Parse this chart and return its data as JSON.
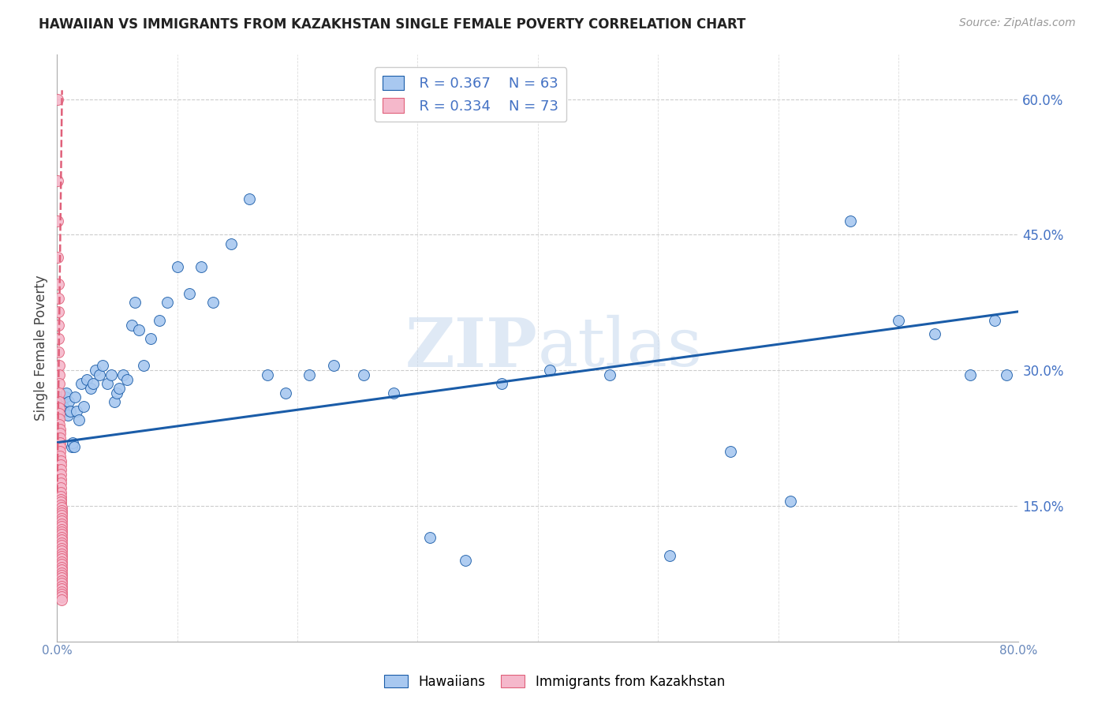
{
  "title": "HAWAIIAN VS IMMIGRANTS FROM KAZAKHSTAN SINGLE FEMALE POVERTY CORRELATION CHART",
  "source": "Source: ZipAtlas.com",
  "ylabel": "Single Female Poverty",
  "watermark": "ZIPatlas",
  "legend_r1": "R = 0.367",
  "legend_n1": "N = 63",
  "legend_r2": "R = 0.334",
  "legend_n2": "N = 73",
  "hawaiian_color": "#a8c8f0",
  "hawaii_line_color": "#1a5ca8",
  "kazakhstan_color": "#f5b8cb",
  "kazakhstan_line_color": "#e0607a",
  "hawaiian_x": [
    0.003,
    0.004,
    0.005,
    0.006,
    0.007,
    0.008,
    0.009,
    0.01,
    0.011,
    0.012,
    0.013,
    0.014,
    0.015,
    0.016,
    0.018,
    0.02,
    0.022,
    0.025,
    0.028,
    0.03,
    0.032,
    0.035,
    0.038,
    0.042,
    0.045,
    0.048,
    0.05,
    0.052,
    0.055,
    0.058,
    0.062,
    0.065,
    0.068,
    0.072,
    0.078,
    0.085,
    0.092,
    0.1,
    0.11,
    0.12,
    0.13,
    0.145,
    0.16,
    0.175,
    0.19,
    0.21,
    0.23,
    0.255,
    0.28,
    0.31,
    0.34,
    0.37,
    0.41,
    0.46,
    0.51,
    0.56,
    0.61,
    0.66,
    0.7,
    0.73,
    0.76,
    0.78,
    0.79
  ],
  "hawaiian_y": [
    0.27,
    0.265,
    0.26,
    0.255,
    0.27,
    0.275,
    0.25,
    0.265,
    0.255,
    0.215,
    0.22,
    0.215,
    0.27,
    0.255,
    0.245,
    0.285,
    0.26,
    0.29,
    0.28,
    0.285,
    0.3,
    0.295,
    0.305,
    0.285,
    0.295,
    0.265,
    0.275,
    0.28,
    0.295,
    0.29,
    0.35,
    0.375,
    0.345,
    0.305,
    0.335,
    0.355,
    0.375,
    0.415,
    0.385,
    0.415,
    0.375,
    0.44,
    0.49,
    0.295,
    0.275,
    0.295,
    0.305,
    0.295,
    0.275,
    0.115,
    0.09,
    0.285,
    0.3,
    0.295,
    0.095,
    0.21,
    0.155,
    0.465,
    0.355,
    0.34,
    0.295,
    0.355,
    0.295
  ],
  "kazakhstan_x": [
    0.0005,
    0.0006,
    0.0007,
    0.0008,
    0.0009,
    0.001,
    0.001,
    0.0012,
    0.0013,
    0.0014,
    0.0015,
    0.0016,
    0.0017,
    0.0018,
    0.0019,
    0.002,
    0.002,
    0.002,
    0.002,
    0.0022,
    0.0023,
    0.0024,
    0.0025,
    0.0026,
    0.0027,
    0.0028,
    0.003,
    0.003,
    0.003,
    0.003,
    0.003,
    0.003,
    0.003,
    0.003,
    0.003,
    0.0032,
    0.0033,
    0.0034,
    0.0035,
    0.0036,
    0.0037,
    0.0038,
    0.0039,
    0.004,
    0.004,
    0.004,
    0.004,
    0.004,
    0.004,
    0.004,
    0.004,
    0.004,
    0.004,
    0.004,
    0.004,
    0.004,
    0.004,
    0.004,
    0.004,
    0.004,
    0.004,
    0.004,
    0.004,
    0.004,
    0.004,
    0.004,
    0.004,
    0.004,
    0.004,
    0.004,
    0.004,
    0.004,
    0.004
  ],
  "kazakhstan_y": [
    0.6,
    0.51,
    0.465,
    0.425,
    0.395,
    0.38,
    0.365,
    0.35,
    0.335,
    0.32,
    0.305,
    0.295,
    0.285,
    0.275,
    0.265,
    0.258,
    0.252,
    0.246,
    0.24,
    0.235,
    0.23,
    0.225,
    0.22,
    0.215,
    0.21,
    0.205,
    0.2,
    0.195,
    0.19,
    0.185,
    0.18,
    0.175,
    0.17,
    0.165,
    0.16,
    0.157,
    0.154,
    0.151,
    0.148,
    0.145,
    0.142,
    0.139,
    0.136,
    0.133,
    0.13,
    0.127,
    0.124,
    0.121,
    0.118,
    0.115,
    0.112,
    0.109,
    0.106,
    0.103,
    0.1,
    0.097,
    0.094,
    0.091,
    0.088,
    0.085,
    0.082,
    0.079,
    0.076,
    0.073,
    0.07,
    0.067,
    0.064,
    0.061,
    0.058,
    0.055,
    0.052,
    0.049,
    0.046
  ],
  "xlim": [
    0.0,
    0.8
  ],
  "ylim": [
    0.0,
    0.65
  ],
  "blue_line_x": [
    0.0,
    0.8
  ],
  "blue_line_y": [
    0.22,
    0.365
  ],
  "pink_line_x": [
    0.0002,
    0.0042
  ],
  "pink_line_y": [
    0.165,
    0.61
  ],
  "xticks": [
    0.0,
    0.1,
    0.2,
    0.3,
    0.4,
    0.5,
    0.6,
    0.7,
    0.8
  ],
  "xtick_labels": [
    "0.0%",
    "",
    "",
    "",
    "",
    "",
    "",
    "",
    "80.0%"
  ],
  "yticks_right": [
    0.15,
    0.3,
    0.45,
    0.6
  ],
  "ytick_labels_right": [
    "15.0%",
    "30.0%",
    "45.0%",
    "60.0%"
  ]
}
